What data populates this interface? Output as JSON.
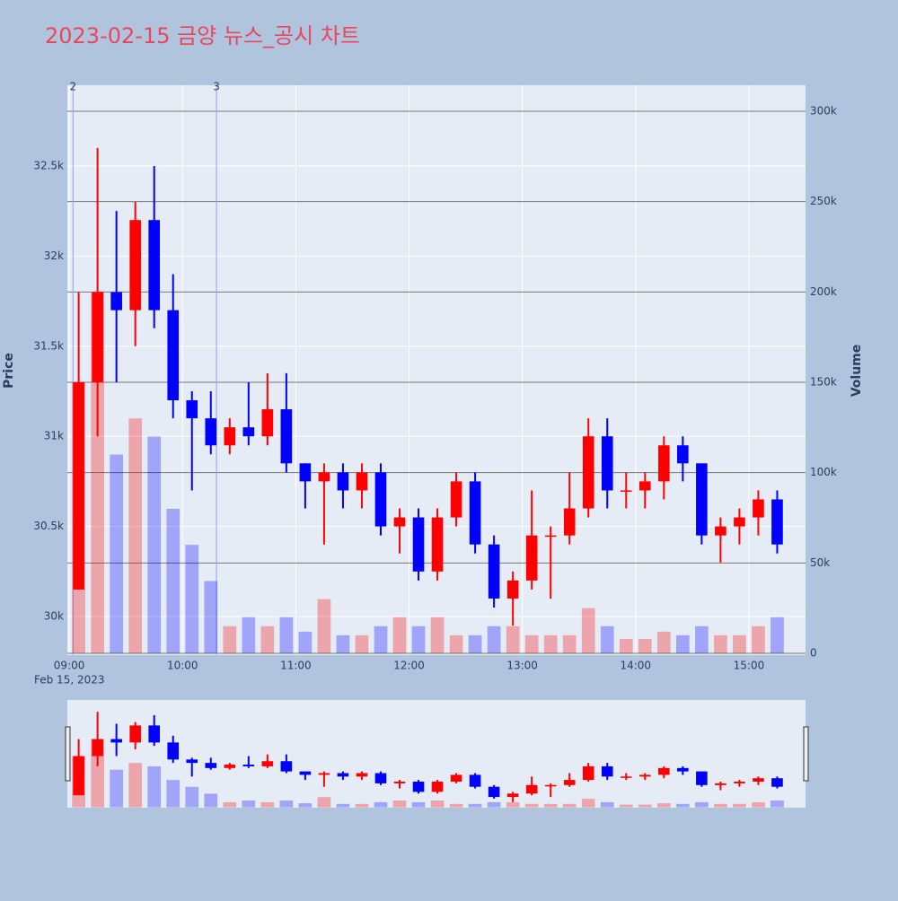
{
  "chart_data": {
    "type": "candlestick",
    "title": "2023-02-15 금양 뉴스_공시 차트",
    "x_date_label": "Feb 15, 2023",
    "y_title": "Price",
    "y2_title": "Volume",
    "x": [
      "09:00",
      "09:10",
      "09:20",
      "09:30",
      "09:40",
      "09:50",
      "10:00",
      "10:10",
      "10:20",
      "10:30",
      "10:40",
      "10:50",
      "11:00",
      "11:10",
      "11:20",
      "11:30",
      "11:40",
      "11:50",
      "12:00",
      "12:10",
      "12:20",
      "12:30",
      "12:40",
      "12:50",
      "13:00",
      "13:10",
      "13:20",
      "13:30",
      "13:40",
      "13:50",
      "14:00",
      "14:10",
      "14:20",
      "14:30",
      "14:40",
      "14:50",
      "15:00",
      "15:10"
    ],
    "open": [
      30150,
      31300,
      31800,
      31700,
      32200,
      31700,
      31200,
      31100,
      30950,
      31050,
      31000,
      31150,
      30850,
      30750,
      30800,
      30700,
      30800,
      30500,
      30550,
      30250,
      30550,
      30750,
      30400,
      30100,
      30200,
      30450,
      30450,
      30600,
      31000,
      30700,
      30700,
      30750,
      30950,
      30850,
      30450,
      30500,
      30550,
      30650
    ],
    "high": [
      31800,
      32600,
      32250,
      32300,
      32500,
      31900,
      31250,
      31250,
      31100,
      31300,
      31350,
      31350,
      30850,
      30850,
      30850,
      30850,
      30850,
      30600,
      30600,
      30600,
      30800,
      30800,
      30450,
      30250,
      30700,
      30500,
      30800,
      31100,
      31100,
      30800,
      30800,
      31000,
      31000,
      30850,
      30550,
      30600,
      30700,
      30700
    ],
    "low": [
      30150,
      31000,
      31300,
      31500,
      31600,
      31100,
      30700,
      30900,
      30900,
      30950,
      30950,
      30800,
      30600,
      30400,
      30600,
      30600,
      30450,
      30350,
      30200,
      30200,
      30500,
      30350,
      30050,
      29950,
      30150,
      30100,
      30400,
      30550,
      30600,
      30600,
      30600,
      30650,
      30750,
      30400,
      30300,
      30400,
      30450,
      30350
    ],
    "close": [
      31300,
      31800,
      31700,
      32200,
      31700,
      31200,
      31100,
      30950,
      31050,
      31000,
      31150,
      30850,
      30750,
      30800,
      30700,
      30800,
      30500,
      30550,
      30250,
      30550,
      30750,
      30400,
      30100,
      30200,
      30450,
      30450,
      30600,
      31000,
      30700,
      30700,
      30750,
      30950,
      30850,
      30450,
      30500,
      30550,
      30650,
      30400
    ],
    "volume": [
      150000,
      200000,
      110000,
      130000,
      120000,
      80000,
      60000,
      40000,
      15000,
      20000,
      15000,
      20000,
      12000,
      30000,
      10000,
      10000,
      15000,
      20000,
      15000,
      20000,
      10000,
      10000,
      15000,
      15000,
      10000,
      10000,
      10000,
      25000,
      15000,
      8000,
      8000,
      12000,
      10000,
      15000,
      10000,
      10000,
      15000,
      20000
    ],
    "increasing_color": "#ff0000",
    "decreasing_color": "#0000ff",
    "xlim": [
      "08:59",
      "15:30"
    ],
    "xticks": [
      "09:00",
      "10:00",
      "11:00",
      "12:00",
      "13:00",
      "14:00",
      "15:00"
    ],
    "ylim": [
      29786,
      32948
    ],
    "yticks": [
      {
        "value": 30000,
        "label": "30k"
      },
      {
        "value": 30500,
        "label": "30.5k"
      },
      {
        "value": 31000,
        "label": "31k"
      },
      {
        "value": 31500,
        "label": "31.5k"
      },
      {
        "value": 32000,
        "label": "32k"
      },
      {
        "value": 32500,
        "label": "32.5k"
      }
    ],
    "y2lim": [
      -1000,
      314400
    ],
    "y2ticks": [
      0,
      {
        "value": 50000,
        "label": "50k"
      },
      {
        "value": 100000,
        "label": "100k"
      },
      {
        "value": 150000,
        "label": "150k"
      },
      {
        "value": 200000,
        "label": "200k"
      },
      {
        "value": 250000,
        "label": "250k"
      },
      {
        "value": 300000,
        "label": "300k"
      }
    ],
    "annotations": [
      {
        "x": "09:02",
        "text": "2"
      },
      {
        "x": "10:18",
        "text": "3"
      }
    ],
    "grid": true,
    "rangeslider": true
  }
}
